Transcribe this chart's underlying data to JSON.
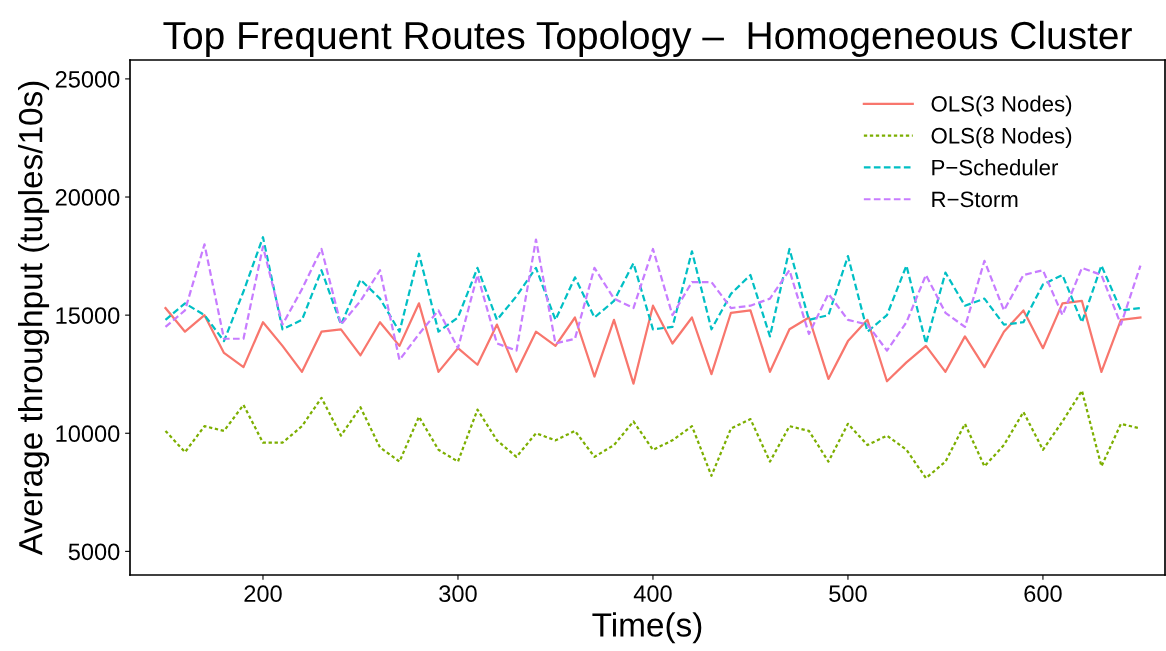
{
  "chart_data": {
    "type": "line",
    "title": "Top Frequent Routes Topology –  Homogeneous Cluster",
    "xlabel": "Time(s)",
    "ylabel": "Average throughput (tuples/10s)",
    "x": [
      150,
      160,
      170,
      180,
      190,
      200,
      210,
      220,
      230,
      240,
      250,
      260,
      270,
      280,
      290,
      300,
      310,
      320,
      330,
      340,
      350,
      360,
      370,
      380,
      390,
      400,
      410,
      420,
      430,
      440,
      450,
      460,
      470,
      480,
      490,
      500,
      510,
      520,
      530,
      540,
      550,
      560,
      570,
      580,
      590,
      600,
      610,
      620,
      630,
      640,
      650
    ],
    "series": [
      {
        "name": "OLS(3 Nodes)",
        "color": "#f8766d",
        "line_style": "solid",
        "values": [
          15300,
          14300,
          15000,
          13400,
          12800,
          14700,
          13700,
          12600,
          14300,
          14400,
          13300,
          14700,
          13700,
          15500,
          12600,
          13600,
          12900,
          14600,
          12600,
          14300,
          13700,
          14900,
          12400,
          14800,
          12100,
          15400,
          13800,
          14900,
          12500,
          15100,
          15200,
          12600,
          14400,
          14900,
          12300,
          13900,
          14800,
          12200,
          13000,
          13700,
          12600,
          14100,
          12800,
          14300,
          15200,
          13600,
          15500,
          15600,
          12600,
          14800,
          14900
        ]
      },
      {
        "name": "OLS(8 Nodes)",
        "color": "#7cae00",
        "line_style": "dotted",
        "values": [
          10100,
          9200,
          10300,
          10100,
          11200,
          9600,
          9600,
          10300,
          11500,
          9900,
          11100,
          9400,
          8800,
          10700,
          9300,
          8800,
          11000,
          9700,
          9000,
          10000,
          9700,
          10100,
          9000,
          9500,
          10500,
          9300,
          9700,
          10300,
          8200,
          10200,
          10600,
          8800,
          10300,
          10100,
          8800,
          10400,
          9500,
          9900,
          9300,
          8100,
          8800,
          10400,
          8600,
          9500,
          10900,
          9300,
          10500,
          11800,
          8600,
          10400,
          10200
        ]
      },
      {
        "name": "P−Scheduler",
        "color": "#00bfc4",
        "line_style": "dashed",
        "values": [
          14800,
          15500,
          15000,
          13900,
          16000,
          18300,
          14400,
          14800,
          16900,
          14600,
          16500,
          15700,
          14300,
          17600,
          14300,
          14900,
          17000,
          14800,
          15800,
          17000,
          14800,
          16600,
          14900,
          15600,
          17200,
          14400,
          14500,
          17700,
          14400,
          15900,
          16700,
          14100,
          17800,
          14800,
          15000,
          17500,
          14300,
          15000,
          17100,
          13800,
          16800,
          15400,
          15700,
          14600,
          14700,
          16300,
          16700,
          14700,
          17100,
          15200,
          15300
        ]
      },
      {
        "name": "R−Storm",
        "color": "#c77cff",
        "line_style": "dashed",
        "values": [
          14500,
          15200,
          18000,
          14000,
          14000,
          17900,
          14600,
          16100,
          17800,
          14600,
          15600,
          16900,
          13100,
          14200,
          15200,
          13600,
          16700,
          13800,
          13500,
          18200,
          13800,
          14000,
          17000,
          15700,
          15300,
          17800,
          15000,
          16400,
          16400,
          15300,
          15400,
          15700,
          16900,
          14200,
          15900,
          14800,
          14600,
          13500,
          14700,
          16700,
          15100,
          14500,
          17300,
          15200,
          16700,
          16900,
          15000,
          17000,
          16700,
          14600,
          17100
        ]
      }
    ],
    "xlim": [
      131.8,
      662.6
    ],
    "ylim": [
      4000,
      25800
    ],
    "xticks": [
      200,
      300,
      400,
      500,
      600
    ],
    "yticks": [
      5000,
      10000,
      15000,
      20000,
      25000
    ],
    "grid": false,
    "legend": "top right"
  }
}
